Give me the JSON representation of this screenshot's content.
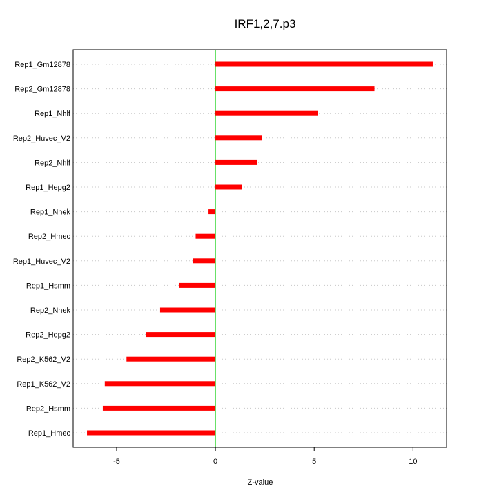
{
  "chart_data": {
    "type": "bar",
    "orientation": "horizontal",
    "title": "IRF1,2,7.p3",
    "xlabel": "Z-value",
    "ylabel": "",
    "xlim": [
      -7.2,
      11.7
    ],
    "xticks": [
      -5,
      0,
      5,
      10
    ],
    "xtick_labels": [
      "-5",
      "0",
      "5",
      "10"
    ],
    "grid": "horizontal dotted",
    "legend": "none",
    "bar_color": "#ff0000",
    "zero_line_color": "#00cc00",
    "categories": [
      "Rep1_Gm12878",
      "Rep2_Gm12878",
      "Rep1_Nhlf",
      "Rep2_Huvec_V2",
      "Rep2_Nhlf",
      "Rep1_Hepg2",
      "Rep1_Nhek",
      "Rep2_Hmec",
      "Rep1_Huvec_V2",
      "Rep1_Hsmm",
      "Rep2_Nhek",
      "Rep2_Hepg2",
      "Rep2_K562_V2",
      "Rep1_K562_V2",
      "Rep2_Hsmm",
      "Rep1_Hmec"
    ],
    "values": [
      11.0,
      8.05,
      5.2,
      2.35,
      2.1,
      1.35,
      -0.35,
      -1.0,
      -1.15,
      -1.85,
      -2.8,
      -3.5,
      -4.5,
      -5.6,
      -5.7,
      -6.5
    ]
  }
}
